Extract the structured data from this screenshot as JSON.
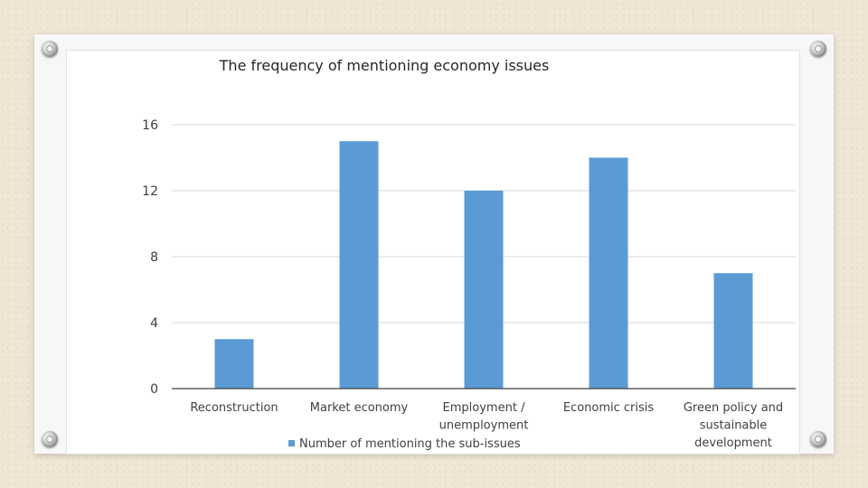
{
  "chart_data": {
    "type": "bar",
    "title": "The frequency of mentioning economy issues",
    "categories": [
      [
        "Reconstruction"
      ],
      [
        "Market economy"
      ],
      [
        "Employment /",
        "unemployment"
      ],
      [
        "Economic crisis"
      ],
      [
        "Green policy and",
        "sustainable",
        "development"
      ]
    ],
    "series": [
      {
        "name": "Number of mentioning the sub-issues",
        "values": [
          3,
          15,
          12,
          14,
          7
        ],
        "color": "#5b9bd5"
      }
    ],
    "ylim": [
      0,
      16
    ],
    "yticks": [
      "0",
      "4",
      "8",
      "12",
      "16"
    ],
    "grid": true,
    "legend": "bottom-center"
  },
  "colors": {
    "gridline": "#d9d9d9",
    "axis": "#404040",
    "text": "#404040",
    "title": "#262626"
  }
}
